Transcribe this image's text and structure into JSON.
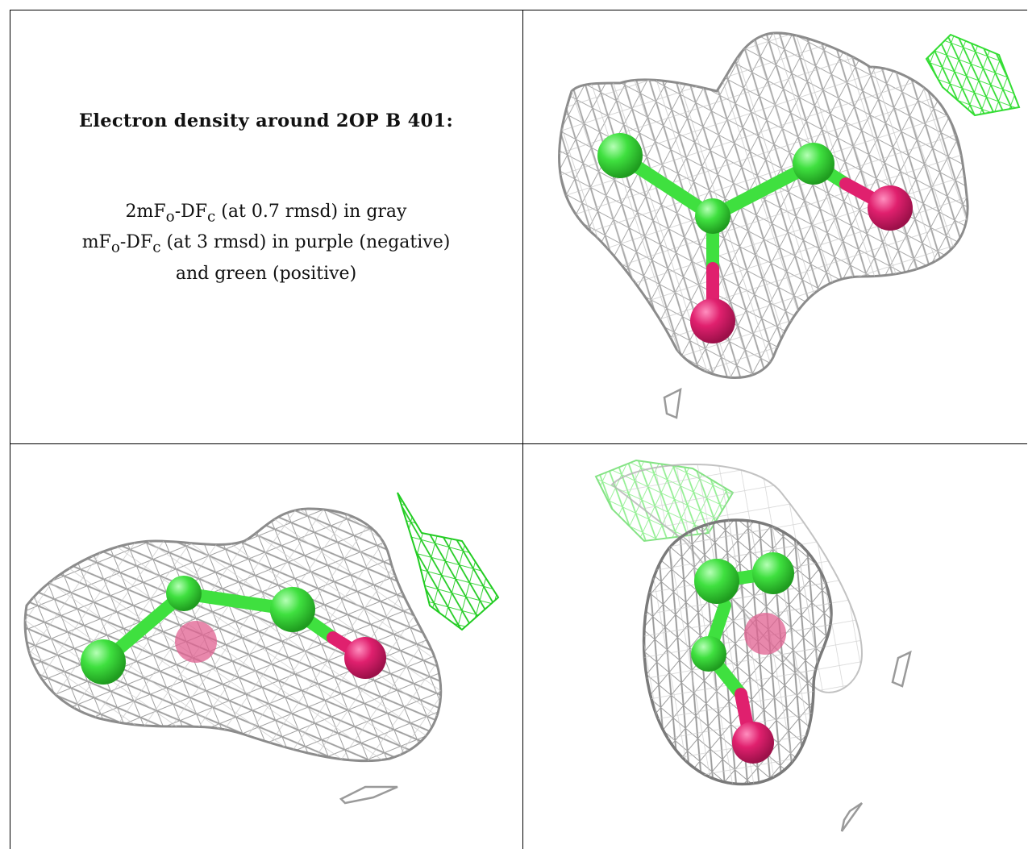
{
  "title": "Electron density around 2OP B 401:",
  "legend": {
    "line1": {
      "pre": "2mF",
      "sub1": "o",
      "mid": "-DF",
      "sub2": "c",
      "post": " (at 0.7 rmsd) in gray"
    },
    "line2": {
      "pre": "mF",
      "sub1": "o",
      "mid": "-DF",
      "sub2": "c",
      "post": " (at 3 rmsd) in purple (negative)"
    },
    "line3": "and green (positive)"
  },
  "colors": {
    "mesh_2fofc": "#9a9a9a",
    "mesh_positive": "#33dd33",
    "mesh_negative": "#a020f0",
    "atom_carbon": "#3fe03f",
    "atom_oxygen": "#e0206e"
  },
  "panels": [
    {
      "name": "view-1"
    },
    {
      "name": "view-2"
    },
    {
      "name": "view-3"
    }
  ]
}
